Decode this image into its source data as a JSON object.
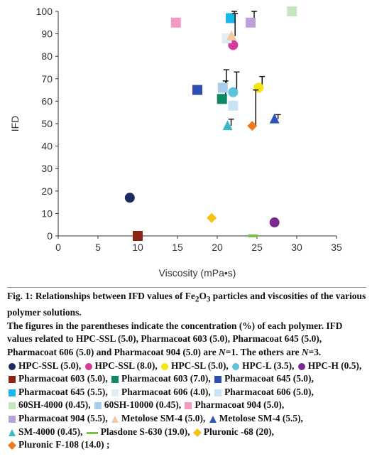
{
  "chart_data": {
    "type": "scatter",
    "xlabel": "Viscosity (mPa•s)",
    "ylabel": "IFD",
    "xlim": [
      0,
      35
    ],
    "ylim": [
      0,
      100
    ],
    "xticks": [
      "0",
      "5",
      "10",
      "15",
      "20",
      "25",
      "30",
      "35"
    ],
    "yticks": [
      "0",
      "10",
      "20",
      "30",
      "40",
      "50",
      "60",
      "70",
      "80",
      "90",
      "100"
    ],
    "series": [
      {
        "name": "HPC-SSL (5.0)",
        "color": "#1f2a5e",
        "shape": "circle",
        "x": 9,
        "y": 17
      },
      {
        "name": "HPC-SSL (8.0)",
        "color": "#d63c9a",
        "shape": "circle",
        "x": 22,
        "y": 85
      },
      {
        "name": "HPC-SL (5.0)",
        "color": "#f5e60c",
        "shape": "circle",
        "x": 25.2,
        "y": 66,
        "err": 5
      },
      {
        "name": "HPC-L (3.5)",
        "color": "#5bc4dc",
        "shape": "circle",
        "x": 22,
        "y": 64,
        "err": 9
      },
      {
        "name": "HPC-H (0.5)",
        "color": "#7b2b8e",
        "shape": "circle",
        "x": 27.2,
        "y": 6
      },
      {
        "name": "Pharmacoat 603 (5.0)",
        "color": "#8e2414",
        "shape": "square",
        "x": 10,
        "y": 0
      },
      {
        "name": "Pharmacoat 603 (7.0)",
        "color": "#0e8a68",
        "shape": "square",
        "x": 20.6,
        "y": 61,
        "err": 8
      },
      {
        "name": "Pharmacoat 645 (5.0)",
        "color": "#2e4fb0",
        "shape": "square",
        "x": 17.5,
        "y": 65
      },
      {
        "name": "Pharmacoat 645 (5.5)",
        "color": "#18b8ec",
        "shape": "square",
        "x": 21.7,
        "y": 97,
        "err": 3
      },
      {
        "name": "Pharmacoat 606 (4.0)",
        "color": "#dfeef6",
        "shape": "square",
        "x": 21.2,
        "y": 88
      },
      {
        "name": "Pharmacoat 606 (5.0)",
        "color": "#c9e3f3",
        "shape": "square",
        "x": 22,
        "y": 58
      },
      {
        "name": "60SH-4000 (0.45)",
        "color": "#c6e6c0",
        "shape": "square",
        "x": 29.4,
        "y": 100
      },
      {
        "name": "60SH-10000 (0.45)",
        "color": "#a9cde9",
        "shape": "square",
        "x": 20.7,
        "y": 66,
        "err": 8
      },
      {
        "name": "Pharmacoat 904 (5.0)",
        "color": "#f49ac0",
        "shape": "square",
        "x": 14.8,
        "y": 95
      },
      {
        "name": "Pharmacoat 904 (5.5)",
        "color": "#b9a3d6",
        "shape": "square",
        "x": 24.2,
        "y": 95,
        "err": 5
      },
      {
        "name": "Metolose SM-4 (5.0)",
        "color": "#f5c7a1",
        "shape": "triangle",
        "x": 21.8,
        "y": 89,
        "err": 10
      },
      {
        "name": "Metolose SM-4 (5.5)",
        "color": "#2b55b8",
        "shape": "triangle",
        "x": 27.2,
        "y": 52,
        "err": 2
      },
      {
        "name": "SM-4000 (0.45)",
        "color": "#3bbcc4",
        "shape": "triangle",
        "x": 21.3,
        "y": 49,
        "err": 3
      },
      {
        "name": "Plasdone S-630 (19.0)",
        "color": "#79c14b",
        "shape": "dash",
        "x": 24.5,
        "y": 0
      },
      {
        "name": "Pluronic -68 (20)",
        "color": "#f5c211",
        "shape": "diamond",
        "x": 19.3,
        "y": 8
      },
      {
        "name": "Pluronic F-108 (14.0)",
        "color": "#ee7a1f",
        "shape": "diamond",
        "x": 24.4,
        "y": 49,
        "err": 16
      }
    ]
  },
  "caption": {
    "fig_label": "Fig. 1:",
    "fig_title": "Relationships between IFD values of Fe",
    "fig_title_sub": "2",
    "fig_title_mid": "O",
    "fig_title_sub2": "3",
    "fig_title_end": "particles and viscosities of the various polymer solutions.",
    "note1": "The figures in the parentheses indicate the concentration (%) of each polymer. IFD values related to HPC-SSL (5.0), Pharmacoat 603 (5.0), Pharmacoat 645 (5.0), Pharmacoat 606 (5.0) and Pharmacoat 904 (5.0) are",
    "n1": "N",
    "note2": "=1. The others are",
    "n3": "N",
    "note3": "=3.",
    "final_sep": ";"
  }
}
